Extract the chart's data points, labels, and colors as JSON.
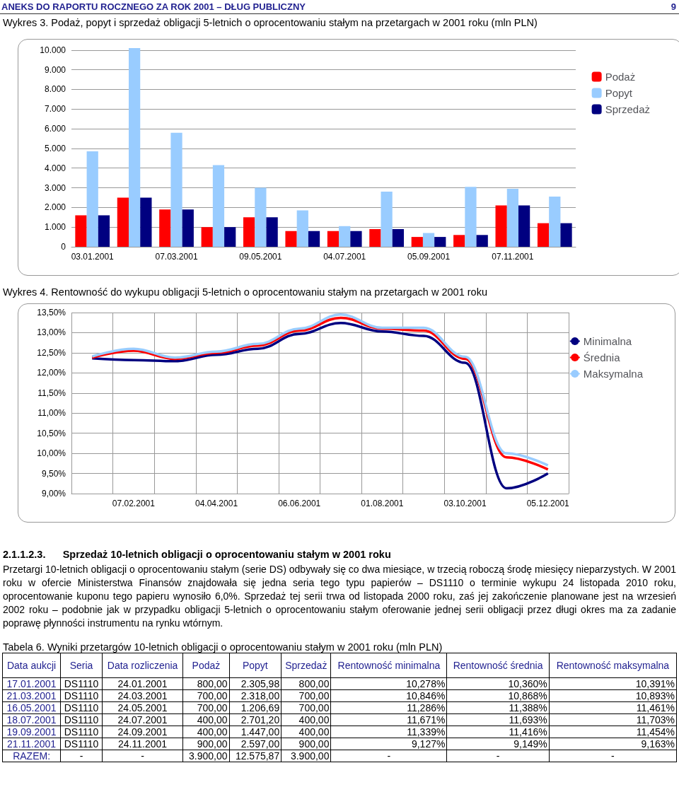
{
  "chart_data": [
    {
      "type": "bar",
      "title": "Wykres 3. Podaż, popyt i sprzedaż obligacji 5-letnich o oprocentowaniu stałym na przetargach w 2001 roku (mln PLN)",
      "annotations": [
        "ANEKS DO RAPORTU ROCZNEGO ZA ROK 2001 – DŁUG PUBLICZNY",
        "9"
      ],
      "categories": [
        "03.01.2001",
        null,
        "07.03.2001",
        null,
        "09.05.2001",
        null,
        "04.07.2001",
        null,
        "05.09.2001",
        null,
        "07.11.2001",
        null
      ],
      "series": [
        {
          "name": "Podaż",
          "color": "#ff0000",
          "values": [
            1600,
            2500,
            1900,
            1000,
            1500,
            800,
            800,
            900,
            500,
            600,
            2100,
            1200
          ]
        },
        {
          "name": "Popyt",
          "color": "#99ccff",
          "values": [
            4850,
            10100,
            5800,
            4150,
            3000,
            1850,
            1050,
            2800,
            700,
            3050,
            2950,
            2550
          ]
        },
        {
          "name": "Sprzedaż",
          "color": "#000080",
          "values": [
            1600,
            2500,
            1900,
            1000,
            1500,
            800,
            800,
            900,
            500,
            600,
            2100,
            1200
          ]
        }
      ],
      "ylim": [
        0,
        10100
      ],
      "yticks": [
        0,
        {
          "value": 1000,
          "label": "1.000"
        },
        {
          "value": 2000,
          "label": "2.000"
        },
        {
          "value": 3000,
          "label": "3.000"
        },
        {
          "value": 4000,
          "label": "4.000"
        },
        {
          "value": 5000,
          "label": "5.000"
        },
        {
          "value": 6000,
          "label": "6.000"
        },
        {
          "value": 7000,
          "label": "7.000"
        },
        {
          "value": 8000,
          "label": "8.000"
        },
        {
          "value": 9000,
          "label": "9.000"
        },
        {
          "value": 10000,
          "label": "10.000"
        }
      ],
      "grid": "y",
      "legend": "top right"
    },
    {
      "type": "line",
      "title": "Wykres 4. Rentowność do wykupu obligacji 5-letnich o oprocentowaniu stałym na przetargach w 2001 roku",
      "categories": [
        null,
        "07.02.2001",
        null,
        "04.04.2001",
        null,
        "06.06.2001",
        null,
        "01.08.2001",
        null,
        "03.10.2001",
        null,
        "05.12.2001"
      ],
      "series": [
        {
          "name": "Minimalna",
          "color": "#000080",
          "values": [
            12.36,
            12.32,
            12.29,
            12.45,
            12.6,
            12.97,
            13.24,
            13.03,
            12.92,
            12.25,
            9.13,
            9.5
          ]
        },
        {
          "name": "Średnia",
          "color": "#ff0000",
          "values": [
            12.38,
            12.55,
            12.35,
            12.5,
            12.68,
            13.05,
            13.37,
            13.1,
            13.05,
            12.35,
            9.9,
            9.6
          ]
        },
        {
          "name": "Maksymalna",
          "color": "#99ccff",
          "values": [
            12.41,
            12.6,
            12.38,
            12.53,
            12.72,
            13.1,
            13.45,
            13.12,
            13.12,
            12.4,
            10.0,
            9.7
          ]
        }
      ],
      "ylim": [
        9,
        13.5
      ],
      "yticks": [
        {
          "value": 9,
          "label": "9,00%"
        },
        {
          "value": 9.5,
          "label": "9,50%"
        },
        {
          "value": 10,
          "label": "10,00%"
        },
        {
          "value": 10.5,
          "label": "10,50%"
        },
        {
          "value": 11,
          "label": "11,00%"
        },
        {
          "value": 11.5,
          "label": "11,50%"
        },
        {
          "value": 12,
          "label": "12,00%"
        },
        {
          "value": 12.5,
          "label": "12,50%"
        },
        {
          "value": 13,
          "label": "13,00%"
        },
        {
          "value": 13.5,
          "label": "13,50%"
        }
      ],
      "grid": true,
      "legend": "top right",
      "marker": "none"
    },
    {
      "type": "other",
      "title": "2.1.1.2.3.      Sprzedaż 10-letnich obligacji o oprocentowaniu stałym w 2001 roku",
      "annotations": [
        "Przetargi 10-letnich obligacji o oprocentowaniu stałym (serie DS) odbywały się co dwa miesiące, w trzecią roboczą środę miesięcy nieparzystych. W 2001 roku w ofercie Ministerstwa Finansów znajdowała się jedna seria tego typu papierów – DS1110 o terminie wykupu 24 listopada 2010 roku, oprocentowanie kuponu tego papieru wynosiło 6,0%. Sprzedaż tej serii trwa od listopada 2000 roku, zaś jej zakończenie planowane jest na wrzesień 2002 roku – podobnie jak w przypadku obligacji 5-letnich o oprocentowaniu stałym oferowanie jednej serii obligacji przez długi okres ma za zadanie poprawę płynności instrumentu na rynku wtórnym."
      ],
      "subtitle": "Tabela 6. Wyniki przetargów 10-letnich obligacji o oprocentowaniu stałym w 2001 roku (mln PLN)",
      "categories": [
        "Data aukcji",
        "Seria",
        "Data rozliczenia",
        "Podaż",
        "Popyt",
        "Sprzedaż",
        "Rentowność minimalna",
        "Rentowność średnia",
        "Rentowność maksymalna"
      ],
      "cell_labels": [
        [
          "17.01.2001",
          "DS1110",
          "24.01.2001",
          "800,00",
          "2.305,98",
          "800,00",
          "10,278%",
          "10,360%",
          "10,391%"
        ],
        [
          "21.03.2001",
          "DS1110",
          "24.03.2001",
          "700,00",
          "2.318,00",
          "700,00",
          "10,846%",
          "10,868%",
          "10,893%"
        ],
        [
          "16.05.2001",
          "DS1110",
          "24.05.2001",
          "700,00",
          "1.206,69",
          "700,00",
          "11,286%",
          "11,388%",
          "11,461%"
        ],
        [
          "18.07.2001",
          "DS1110",
          "24.07.2001",
          "400,00",
          "2.701,20",
          "400,00",
          "11,671%",
          "11,693%",
          "11,703%"
        ],
        [
          "19.09.2001",
          "DS1110",
          "24.09.2001",
          "400,00",
          "1.447,00",
          "400,00",
          "11,339%",
          "11,416%",
          "11,454%"
        ],
        [
          "21.11.2001",
          "DS1110",
          "24.11.2001",
          "900,00",
          "2.597,00",
          "900,00",
          "9,127%",
          "9,149%",
          "9,163%"
        ],
        [
          "RAZEM:",
          "-",
          "-",
          "3.900,00",
          "12.575,87",
          "3.900,00",
          "-",
          "-",
          "-"
        ]
      ]
    }
  ]
}
